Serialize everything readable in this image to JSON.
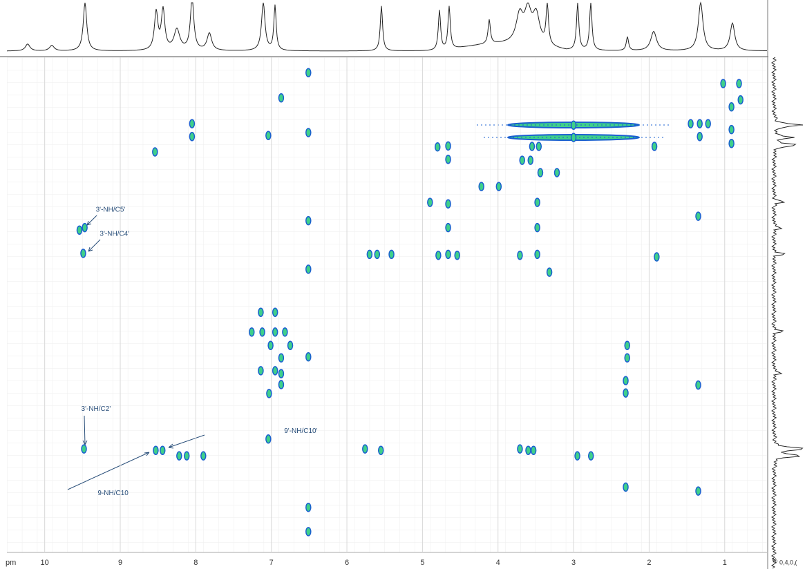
{
  "chart_data": {
    "type": "scatter",
    "x_unit_label": "pm",
    "xlim": [
      10.5,
      0.44
    ],
    "ylim": [
      0,
      100
    ],
    "xticks": [
      10,
      9,
      8,
      7,
      6,
      5,
      4,
      3,
      2,
      1
    ],
    "grid": true,
    "right_axis_labels": [
      "%",
      "0,4,0,("
    ],
    "color": "#3fd08a",
    "edge_color": "#1a5fd0",
    "annotations": [
      {
        "text": "3'-NH/C5'",
        "x": 9.47,
        "y": 34.4
      },
      {
        "text": "3'-NH/C4'",
        "x": 9.49,
        "y": 39.6
      },
      {
        "text": "3'-NH/C2'",
        "x": 9.48,
        "y": 79.1
      },
      {
        "text": "9'-NH/C10'",
        "x": 8.44,
        "y": 79.4
      },
      {
        "text": "9-NH/C10",
        "x": 8.53,
        "y": 79.4
      }
    ],
    "x": [
      6.51,
      6.51,
      6.51,
      6.51,
      6.51,
      6.51,
      6.51,
      6.87,
      1.02,
      0.81,
      0.91,
      0.79,
      0.91,
      0.91,
      8.05,
      8.05,
      7.04,
      8.54,
      4.8,
      4.66,
      4.66,
      3.0,
      3.0,
      1.45,
      1.33,
      1.22,
      1.33,
      1.93,
      3.55,
      3.46,
      3.68,
      3.57,
      3.44,
      3.22,
      4.22,
      3.99,
      4.9,
      4.66,
      3.48,
      9.47,
      9.54,
      4.66,
      3.48,
      1.35,
      9.49,
      5.7,
      5.6,
      5.41,
      4.79,
      4.66,
      4.54,
      3.71,
      3.48,
      1.9,
      3.32,
      7.14,
      6.95,
      7.26,
      7.12,
      6.95,
      6.82,
      7.01,
      6.75,
      6.87,
      7.14,
      6.95,
      6.87,
      7.03,
      6.87,
      2.29,
      2.29,
      2.31,
      2.31,
      1.35,
      9.48,
      8.53,
      8.44,
      8.22,
      8.12,
      7.9,
      7.04,
      5.76,
      5.55,
      3.71,
      3.6,
      3.53,
      2.95,
      2.77,
      2.31,
      1.35
    ],
    "y": [
      3.1,
      15.2,
      33.0,
      42.8,
      60.5,
      90.9,
      95.8,
      8.2,
      5.3,
      5.3,
      10.0,
      8.6,
      14.6,
      17.4,
      13.4,
      16.0,
      15.8,
      19.1,
      18.1,
      17.9,
      20.6,
      13.7,
      16.2,
      13.4,
      13.4,
      13.4,
      16.0,
      18.0,
      18.0,
      18.0,
      20.8,
      20.8,
      23.3,
      23.3,
      26.1,
      26.1,
      29.3,
      29.6,
      29.3,
      34.4,
      34.9,
      34.4,
      34.4,
      32.1,
      39.6,
      39.8,
      39.8,
      39.8,
      40.0,
      39.8,
      40.0,
      40.0,
      39.8,
      40.3,
      43.4,
      51.5,
      51.5,
      55.5,
      55.5,
      55.5,
      55.5,
      58.2,
      58.2,
      60.7,
      63.3,
      63.3,
      63.9,
      67.9,
      66.1,
      58.2,
      60.7,
      65.3,
      67.8,
      66.2,
      79.1,
      79.4,
      79.4,
      80.5,
      80.5,
      80.5,
      77.1,
      79.1,
      79.4,
      79.1,
      79.4,
      79.4,
      80.5,
      80.5,
      86.8,
      87.6
    ]
  }
}
